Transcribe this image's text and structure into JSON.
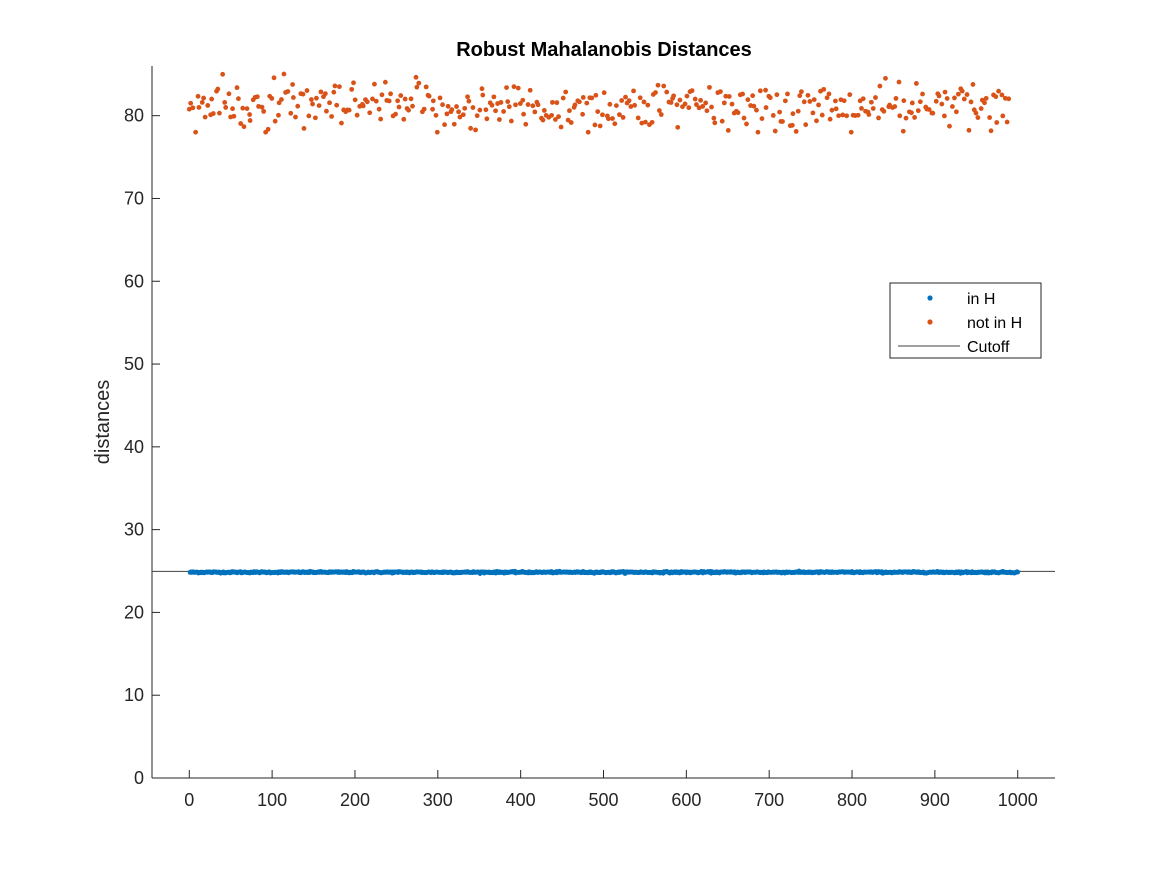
{
  "chart_data": {
    "type": "scatter",
    "title": "Robust Mahalanobis Distances",
    "xlabel": "",
    "ylabel": "distances",
    "xlim": [
      -45,
      1045
    ],
    "ylim": [
      0,
      86
    ],
    "xticks": [
      0,
      100,
      200,
      300,
      400,
      500,
      600,
      700,
      800,
      900,
      1000
    ],
    "yticks": [
      0,
      10,
      20,
      30,
      40,
      50,
      60,
      70,
      80
    ],
    "grid": false,
    "legend_placement": "right",
    "series": [
      {
        "name": "in H",
        "color": "#0072BD",
        "marker": "dot",
        "x_range": [
          1,
          1000
        ],
        "count": 1000,
        "y_center": 24.85,
        "y_spread": 0.18
      },
      {
        "name": "not in H",
        "color": "#D95319",
        "marker": "dot",
        "x_range": [
          0,
          990
        ],
        "count": 400,
        "y_center": 81,
        "y_spread": 1.5,
        "y_min": 78,
        "y_max": 85.5
      }
    ],
    "reference_lines": [
      {
        "name": "Cutoff",
        "orientation": "horizontal",
        "y": 24.95,
        "color": "#404040"
      }
    ]
  }
}
